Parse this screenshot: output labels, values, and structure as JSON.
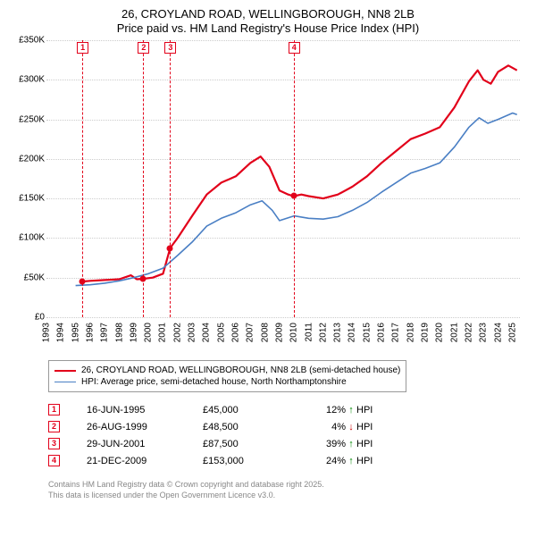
{
  "title": {
    "line1": "26, CROYLAND ROAD, WELLINGBOROUGH, NN8 2LB",
    "line2": "Price paid vs. HM Land Registry's House Price Index (HPI)",
    "fontsize": 13,
    "color": "#000000"
  },
  "chart": {
    "type": "line",
    "background_color": "#ffffff",
    "grid_color": "#cccccc",
    "xlim": [
      1993,
      2025.5
    ],
    "ylim": [
      0,
      350000
    ],
    "y_ticks": [
      {
        "v": 0,
        "label": "£0"
      },
      {
        "v": 50000,
        "label": "£50K"
      },
      {
        "v": 100000,
        "label": "£100K"
      },
      {
        "v": 150000,
        "label": "£150K"
      },
      {
        "v": 200000,
        "label": "£200K"
      },
      {
        "v": 250000,
        "label": "£250K"
      },
      {
        "v": 300000,
        "label": "£300K"
      },
      {
        "v": 350000,
        "label": "£350K"
      }
    ],
    "x_ticks": [
      1993,
      1994,
      1995,
      1996,
      1997,
      1998,
      1999,
      2000,
      2001,
      2002,
      2003,
      2004,
      2005,
      2006,
      2007,
      2008,
      2009,
      2010,
      2011,
      2012,
      2013,
      2014,
      2015,
      2016,
      2017,
      2018,
      2019,
      2020,
      2021,
      2022,
      2023,
      2024,
      2025
    ],
    "tick_fontsize": 10,
    "series": [
      {
        "id": "price_paid",
        "label": "26, CROYLAND ROAD, WELLINGBOROUGH, NN8 2LB (semi-detached house)",
        "color": "#e2001a",
        "line_width": 2.2,
        "points": [
          [
            1995.46,
            45000
          ],
          [
            1996,
            46000
          ],
          [
            1997,
            47000
          ],
          [
            1998,
            48000
          ],
          [
            1998.8,
            53000
          ],
          [
            1999.2,
            48000
          ],
          [
            1999.65,
            48500
          ],
          [
            2000.3,
            50000
          ],
          [
            2001,
            55000
          ],
          [
            2001.49,
            87500
          ],
          [
            2002,
            100000
          ],
          [
            2003,
            128000
          ],
          [
            2004,
            155000
          ],
          [
            2005,
            170000
          ],
          [
            2006,
            178000
          ],
          [
            2007,
            195000
          ],
          [
            2007.7,
            203000
          ],
          [
            2008.3,
            190000
          ],
          [
            2009,
            160000
          ],
          [
            2009.6,
            155000
          ],
          [
            2009.97,
            153000
          ],
          [
            2010.5,
            155000
          ],
          [
            2011,
            153000
          ],
          [
            2012,
            150000
          ],
          [
            2013,
            155000
          ],
          [
            2014,
            165000
          ],
          [
            2015,
            178000
          ],
          [
            2016,
            195000
          ],
          [
            2017,
            210000
          ],
          [
            2018,
            225000
          ],
          [
            2019,
            232000
          ],
          [
            2020,
            240000
          ],
          [
            2021,
            265000
          ],
          [
            2022,
            298000
          ],
          [
            2022.6,
            312000
          ],
          [
            2023,
            300000
          ],
          [
            2023.5,
            295000
          ],
          [
            2024,
            310000
          ],
          [
            2024.7,
            318000
          ],
          [
            2025.3,
            312000
          ]
        ]
      },
      {
        "id": "hpi",
        "label": "HPI: Average price, semi-detached house, North Northamptonshire",
        "color": "#4a7fc4",
        "line_width": 1.6,
        "points": [
          [
            1995,
            40000
          ],
          [
            1996,
            41000
          ],
          [
            1997,
            43000
          ],
          [
            1998,
            46000
          ],
          [
            1999,
            50000
          ],
          [
            2000,
            55000
          ],
          [
            2001,
            62000
          ],
          [
            2002,
            78000
          ],
          [
            2003,
            95000
          ],
          [
            2004,
            115000
          ],
          [
            2005,
            125000
          ],
          [
            2006,
            132000
          ],
          [
            2007,
            142000
          ],
          [
            2007.8,
            147000
          ],
          [
            2008.5,
            135000
          ],
          [
            2009,
            122000
          ],
          [
            2010,
            128000
          ],
          [
            2011,
            125000
          ],
          [
            2012,
            124000
          ],
          [
            2013,
            127000
          ],
          [
            2014,
            135000
          ],
          [
            2015,
            145000
          ],
          [
            2016,
            158000
          ],
          [
            2017,
            170000
          ],
          [
            2018,
            182000
          ],
          [
            2019,
            188000
          ],
          [
            2020,
            195000
          ],
          [
            2021,
            215000
          ],
          [
            2022,
            240000
          ],
          [
            2022.7,
            252000
          ],
          [
            2023.3,
            245000
          ],
          [
            2024,
            250000
          ],
          [
            2025,
            258000
          ],
          [
            2025.3,
            256000
          ]
        ]
      }
    ],
    "sale_markers": [
      {
        "n": "1",
        "x": 1995.46,
        "y": 45000,
        "color": "#e2001a"
      },
      {
        "n": "2",
        "x": 1999.65,
        "y": 48500,
        "color": "#e2001a"
      },
      {
        "n": "3",
        "x": 2001.49,
        "y": 87500,
        "color": "#e2001a"
      },
      {
        "n": "4",
        "x": 2009.97,
        "y": 153000,
        "color": "#e2001a"
      }
    ]
  },
  "legend": {
    "border_color": "#999999",
    "fontsize": 10,
    "items": [
      {
        "color": "#e2001a",
        "width": 2.2,
        "label": "26, CROYLAND ROAD, WELLINGBOROUGH, NN8 2LB (semi-detached house)"
      },
      {
        "color": "#4a7fc4",
        "width": 1.6,
        "label": "HPI: Average price, semi-detached house, North Northamptonshire"
      }
    ]
  },
  "sales_table": {
    "fontsize": 11,
    "rows": [
      {
        "n": "1",
        "color": "#e2001a",
        "date": "16-JUN-1995",
        "price": "£45,000",
        "pct": "12%",
        "arrow": "↑",
        "arrow_color": "#008800",
        "hpi_label": "HPI"
      },
      {
        "n": "2",
        "color": "#e2001a",
        "date": "26-AUG-1999",
        "price": "£48,500",
        "pct": "4%",
        "arrow": "↓",
        "arrow_color": "#cc0000",
        "hpi_label": "HPI"
      },
      {
        "n": "3",
        "color": "#e2001a",
        "date": "29-JUN-2001",
        "price": "£87,500",
        "pct": "39%",
        "arrow": "↑",
        "arrow_color": "#008800",
        "hpi_label": "HPI"
      },
      {
        "n": "4",
        "color": "#e2001a",
        "date": "21-DEC-2009",
        "price": "£153,000",
        "pct": "24%",
        "arrow": "↑",
        "arrow_color": "#008800",
        "hpi_label": "HPI"
      }
    ]
  },
  "footer": {
    "line1": "Contains HM Land Registry data © Crown copyright and database right 2025.",
    "line2": "This data is licensed under the Open Government Licence v3.0.",
    "color": "#888888",
    "fontsize": 9
  }
}
